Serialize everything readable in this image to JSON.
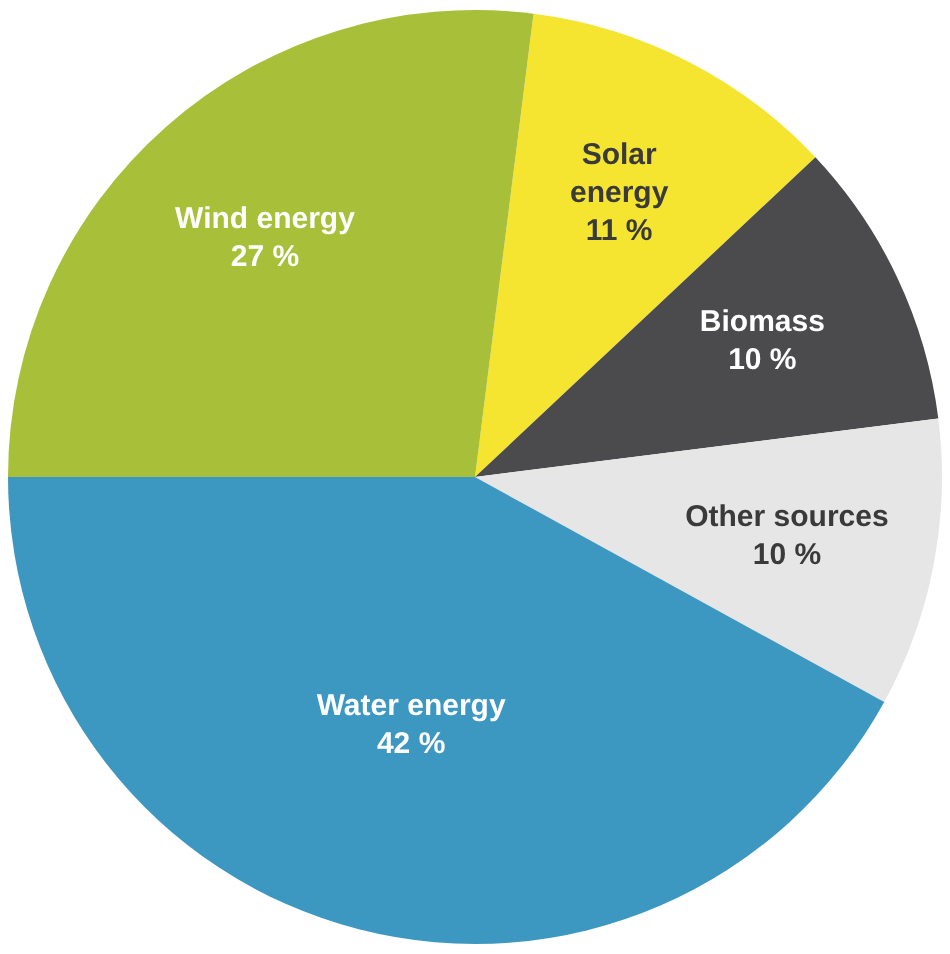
{
  "chart_data": {
    "type": "pie",
    "categories": [
      "Solar energy",
      "Biomass",
      "Other sources",
      "Water energy",
      "Wind energy"
    ],
    "values": [
      11,
      10,
      10,
      42,
      27
    ],
    "colors": [
      "#f5e531",
      "#4b4b4d",
      "#e6e6e6",
      "#3d98c1",
      "#a8bf3a"
    ],
    "value_labels": [
      "11 %",
      "10 %",
      "10 %",
      "42 %",
      "27 %"
    ],
    "legend": false
  }
}
